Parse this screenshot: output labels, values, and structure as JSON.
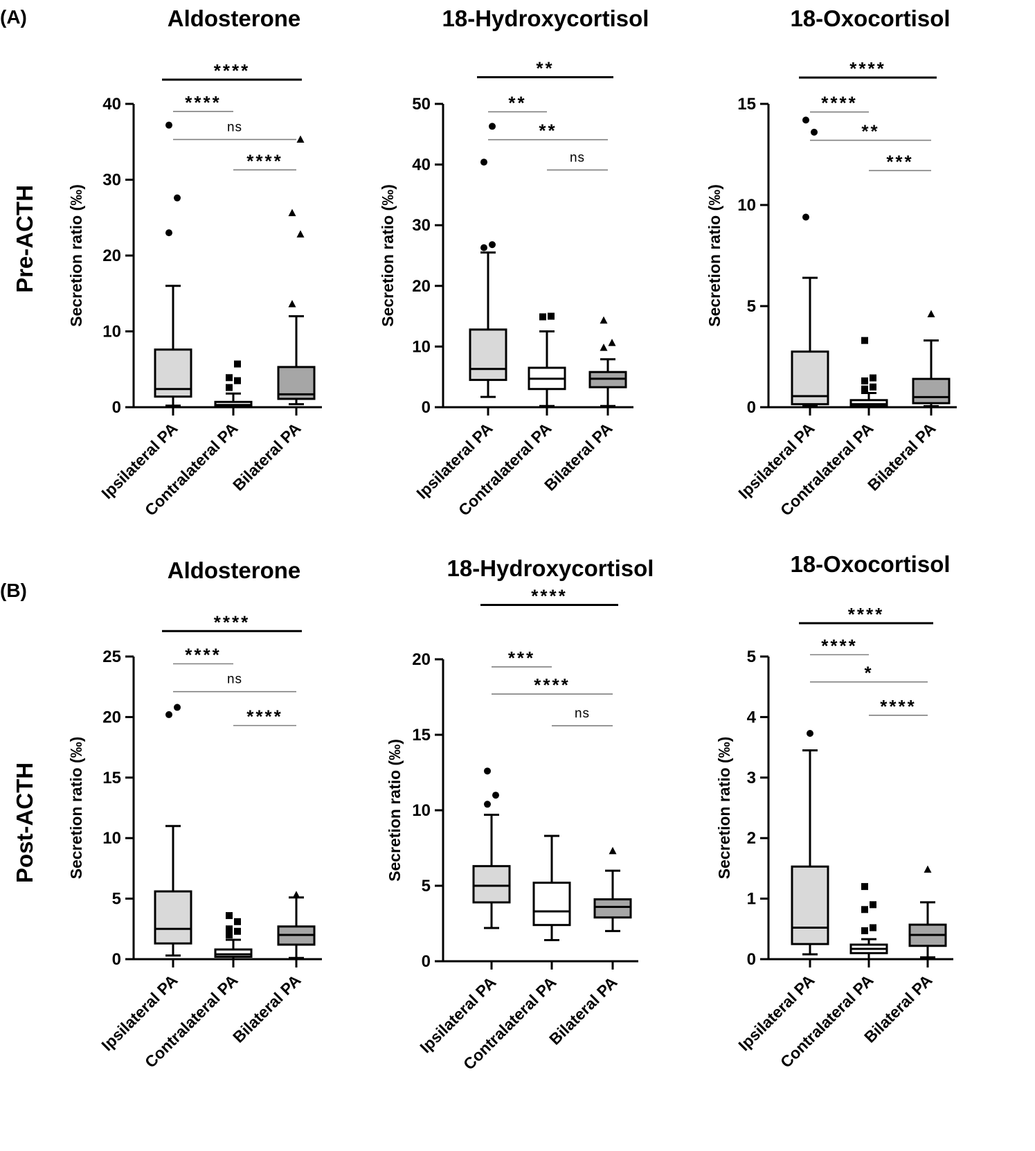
{
  "colors": {
    "ipsilateral_fill": "#d9d9d9",
    "contralateral_fill": "#ffffff",
    "bilateral_fill": "#a6a6a6",
    "axis": "#000000",
    "sig_line_minor": "#7f7f7f"
  },
  "panels": [
    {
      "label": "(A)",
      "row_label": "Pre-ACTH"
    },
    {
      "label": "(B)",
      "row_label": "Post-ACTH"
    }
  ],
  "chart_data": [
    {
      "type": "box",
      "panel": "(A)",
      "row": "Pre-ACTH",
      "title": "Aldosterone",
      "ylabel": "Secretion ratio (‰)",
      "ylim": [
        0,
        40
      ],
      "yticks": [
        0,
        10,
        20,
        30,
        40
      ],
      "categories": [
        "Ipsilateral PA",
        "Contralateral PA",
        "Bilateral PA"
      ],
      "boxes": [
        {
          "name": "Ipsilateral PA",
          "whisker_low": 0.2,
          "q1": 1.4,
          "median": 2.4,
          "q3": 7.6,
          "whisker_high": 16.0,
          "outliers": [
            23.0,
            27.6,
            37.2
          ],
          "marker": "circle"
        },
        {
          "name": "Contralateral PA",
          "whisker_low": 0.0,
          "q1": 0.1,
          "median": 0.3,
          "q3": 0.7,
          "whisker_high": 1.8,
          "outliers": [
            2.6,
            3.5,
            3.9,
            5.7
          ],
          "marker": "square"
        },
        {
          "name": "Bilateral PA",
          "whisker_low": 0.4,
          "q1": 1.1,
          "median": 1.7,
          "q3": 5.3,
          "whisker_high": 12.0,
          "outliers": [
            13.6,
            22.8,
            25.6,
            35.3
          ],
          "marker": "triangle"
        }
      ],
      "comparisons": [
        {
          "pair": [
            "Ipsilateral PA",
            "Bilateral PA"
          ],
          "label": "****",
          "y": 43.2,
          "major": true
        },
        {
          "pair": [
            "Ipsilateral PA",
            "Contralateral PA"
          ],
          "label": "****",
          "y": 39.0,
          "major": false
        },
        {
          "pair": [
            "Ipsilateral PA",
            "Bilateral PA"
          ],
          "label": "ns",
          "y": 35.3,
          "major": false
        },
        {
          "pair": [
            "Contralateral PA",
            "Bilateral PA"
          ],
          "label": "****",
          "y": 31.3,
          "major": false
        }
      ]
    },
    {
      "type": "box",
      "panel": "(A)",
      "row": "Pre-ACTH",
      "title": "18-Hydroxycortisol",
      "ylabel": "Secretion ratio (‰)",
      "ylim": [
        0,
        50
      ],
      "yticks": [
        0,
        10,
        20,
        30,
        40,
        50
      ],
      "categories": [
        "Ipsilateral PA",
        "Contralateral PA",
        "Bilateral PA"
      ],
      "boxes": [
        {
          "name": "Ipsilateral PA",
          "whisker_low": 1.7,
          "q1": 4.5,
          "median": 6.3,
          "q3": 12.8,
          "whisker_high": 25.5,
          "outliers": [
            26.3,
            26.8,
            40.4,
            46.3
          ],
          "marker": "circle"
        },
        {
          "name": "Contralateral PA",
          "whisker_low": 0.2,
          "q1": 3.0,
          "median": 4.7,
          "q3": 6.5,
          "whisker_high": 12.5,
          "outliers": [
            14.9,
            15.0
          ],
          "marker": "square"
        },
        {
          "name": "Bilateral PA",
          "whisker_low": 0.2,
          "q1": 3.3,
          "median": 4.7,
          "q3": 5.8,
          "whisker_high": 7.9,
          "outliers": [
            9.8,
            10.6,
            14.3
          ],
          "marker": "triangle"
        }
      ],
      "comparisons": [
        {
          "pair": [
            "Ipsilateral PA",
            "Bilateral PA"
          ],
          "label": "**",
          "y": 54.4,
          "major": true
        },
        {
          "pair": [
            "Ipsilateral PA",
            "Contralateral PA"
          ],
          "label": "**",
          "y": 48.7,
          "major": false
        },
        {
          "pair": [
            "Ipsilateral PA",
            "Bilateral PA"
          ],
          "label": "**",
          "y": 44.1,
          "major": false
        },
        {
          "pair": [
            "Contralateral PA",
            "Bilateral PA"
          ],
          "label": "ns",
          "y": 39.1,
          "major": false
        }
      ]
    },
    {
      "type": "box",
      "panel": "(A)",
      "row": "Pre-ACTH",
      "title": "18-Oxocortisol",
      "ylabel": "Secretion ratio (‰)",
      "ylim": [
        0,
        15
      ],
      "yticks": [
        0,
        5,
        10,
        15
      ],
      "categories": [
        "Ipsilateral PA",
        "Contralateral PA",
        "Bilateral PA"
      ],
      "boxes": [
        {
          "name": "Ipsilateral PA",
          "whisker_low": 0.05,
          "q1": 0.15,
          "median": 0.55,
          "q3": 2.75,
          "whisker_high": 6.4,
          "outliers": [
            9.4,
            13.6,
            14.2
          ],
          "marker": "circle"
        },
        {
          "name": "Contralateral PA",
          "whisker_low": 0.0,
          "q1": 0.05,
          "median": 0.15,
          "q3": 0.35,
          "whisker_high": 0.7,
          "outliers": [
            0.9,
            1.0,
            1.3,
            1.45,
            3.3
          ],
          "marker": "square"
        },
        {
          "name": "Bilateral PA",
          "whisker_low": 0.05,
          "q1": 0.2,
          "median": 0.5,
          "q3": 1.4,
          "whisker_high": 3.3,
          "outliers": [
            4.6
          ],
          "marker": "triangle"
        }
      ],
      "comparisons": [
        {
          "pair": [
            "Ipsilateral PA",
            "Bilateral PA"
          ],
          "label": "****",
          "y": 16.3,
          "major": true
        },
        {
          "pair": [
            "Ipsilateral PA",
            "Contralateral PA"
          ],
          "label": "****",
          "y": 14.6,
          "major": false
        },
        {
          "pair": [
            "Ipsilateral PA",
            "Bilateral PA"
          ],
          "label": "**",
          "y": 13.2,
          "major": false
        },
        {
          "pair": [
            "Contralateral PA",
            "Bilateral PA"
          ],
          "label": "***",
          "y": 11.7,
          "major": false
        }
      ]
    },
    {
      "type": "box",
      "panel": "(B)",
      "row": "Post-ACTH",
      "title": "Aldosterone",
      "ylabel": "Secretion ratio (‰)",
      "ylim": [
        0,
        25
      ],
      "yticks": [
        0,
        5,
        10,
        15,
        20,
        25
      ],
      "categories": [
        "Ipsilateral PA",
        "Contralateral PA",
        "Bilateral PA"
      ],
      "boxes": [
        {
          "name": "Ipsilateral PA",
          "whisker_low": 0.3,
          "q1": 1.3,
          "median": 2.5,
          "q3": 5.6,
          "whisker_high": 11.0,
          "outliers": [
            20.2,
            20.8
          ],
          "marker": "circle"
        },
        {
          "name": "Contralateral PA",
          "whisker_low": 0.0,
          "q1": 0.2,
          "median": 0.4,
          "q3": 0.8,
          "whisker_high": 1.6,
          "outliers": [
            2.0,
            2.3,
            2.5,
            3.1,
            3.6
          ],
          "marker": "square"
        },
        {
          "name": "Bilateral PA",
          "whisker_low": 0.1,
          "q1": 1.2,
          "median": 2.0,
          "q3": 2.7,
          "whisker_high": 5.1,
          "outliers": [
            5.3
          ],
          "marker": "triangle"
        }
      ],
      "comparisons": [
        {
          "pair": [
            "Ipsilateral PA",
            "Bilateral PA"
          ],
          "label": "****",
          "y": 27.1,
          "major": true
        },
        {
          "pair": [
            "Ipsilateral PA",
            "Contralateral PA"
          ],
          "label": "****",
          "y": 24.4,
          "major": false
        },
        {
          "pair": [
            "Ipsilateral PA",
            "Bilateral PA"
          ],
          "label": "ns",
          "y": 22.1,
          "major": false
        },
        {
          "pair": [
            "Contralateral PA",
            "Bilateral PA"
          ],
          "label": "****",
          "y": 19.3,
          "major": false
        }
      ]
    },
    {
      "type": "box",
      "panel": "(B)",
      "row": "Post-ACTH",
      "title": "18-Hydroxycortisol",
      "ylabel": "Secretion ratio (‰)",
      "ylim": [
        0,
        20
      ],
      "yticks": [
        0,
        5,
        10,
        15,
        20
      ],
      "categories": [
        "Ipsilateral PA",
        "Contralateral PA",
        "Bilateral PA"
      ],
      "boxes": [
        {
          "name": "Ipsilateral PA",
          "whisker_low": 2.2,
          "q1": 3.9,
          "median": 5.0,
          "q3": 6.3,
          "whisker_high": 9.7,
          "outliers": [
            10.4,
            11.0,
            12.6
          ],
          "marker": "circle"
        },
        {
          "name": "Contralateral PA",
          "whisker_low": 1.4,
          "q1": 2.4,
          "median": 3.3,
          "q3": 5.2,
          "whisker_high": 8.3,
          "outliers": [],
          "marker": "square"
        },
        {
          "name": "Bilateral PA",
          "whisker_low": 2.0,
          "q1": 2.9,
          "median": 3.6,
          "q3": 4.1,
          "whisker_high": 6.0,
          "outliers": [
            7.3
          ],
          "marker": "triangle"
        }
      ],
      "comparisons": [
        {
          "pair": [
            "Ipsilateral PA",
            "Bilateral PA"
          ],
          "label": "****",
          "y": 23.6,
          "major": true
        },
        {
          "pair": [
            "Ipsilateral PA",
            "Contralateral PA"
          ],
          "label": "***",
          "y": 19.5,
          "major": false
        },
        {
          "pair": [
            "Ipsilateral PA",
            "Bilateral PA"
          ],
          "label": "****",
          "y": 17.7,
          "major": false
        },
        {
          "pair": [
            "Contralateral PA",
            "Bilateral PA"
          ],
          "label": "ns",
          "y": 15.6,
          "major": false
        }
      ]
    },
    {
      "type": "box",
      "panel": "(B)",
      "row": "Post-ACTH",
      "title": "18-Oxocortisol",
      "ylabel": "Secretion ratio (‰)",
      "ylim": [
        0,
        5
      ],
      "yticks": [
        0,
        1,
        2,
        3,
        4,
        5
      ],
      "categories": [
        "Ipsilateral PA",
        "Contralateral PA",
        "Bilateral PA"
      ],
      "boxes": [
        {
          "name": "Ipsilateral PA",
          "whisker_low": 0.08,
          "q1": 0.25,
          "median": 0.52,
          "q3": 1.53,
          "whisker_high": 3.45,
          "outliers": [
            3.73
          ],
          "marker": "circle"
        },
        {
          "name": "Contralateral PA",
          "whisker_low": 0.0,
          "q1": 0.1,
          "median": 0.17,
          "q3": 0.24,
          "whisker_high": 0.33,
          "outliers": [
            0.47,
            0.52,
            0.82,
            0.9,
            1.2
          ],
          "marker": "square"
        },
        {
          "name": "Bilateral PA",
          "whisker_low": 0.03,
          "q1": 0.22,
          "median": 0.4,
          "q3": 0.57,
          "whisker_high": 0.94,
          "outliers": [
            1.48
          ],
          "marker": "triangle"
        }
      ],
      "comparisons": [
        {
          "pair": [
            "Ipsilateral PA",
            "Bilateral PA"
          ],
          "label": "****",
          "y": 5.55,
          "major": true
        },
        {
          "pair": [
            "Ipsilateral PA",
            "Contralateral PA"
          ],
          "label": "****",
          "y": 5.03,
          "major": false
        },
        {
          "pair": [
            "Ipsilateral PA",
            "Bilateral PA"
          ],
          "label": "*",
          "y": 4.58,
          "major": false
        },
        {
          "pair": [
            "Contralateral PA",
            "Bilateral PA"
          ],
          "label": "****",
          "y": 4.03,
          "major": false
        }
      ]
    }
  ]
}
